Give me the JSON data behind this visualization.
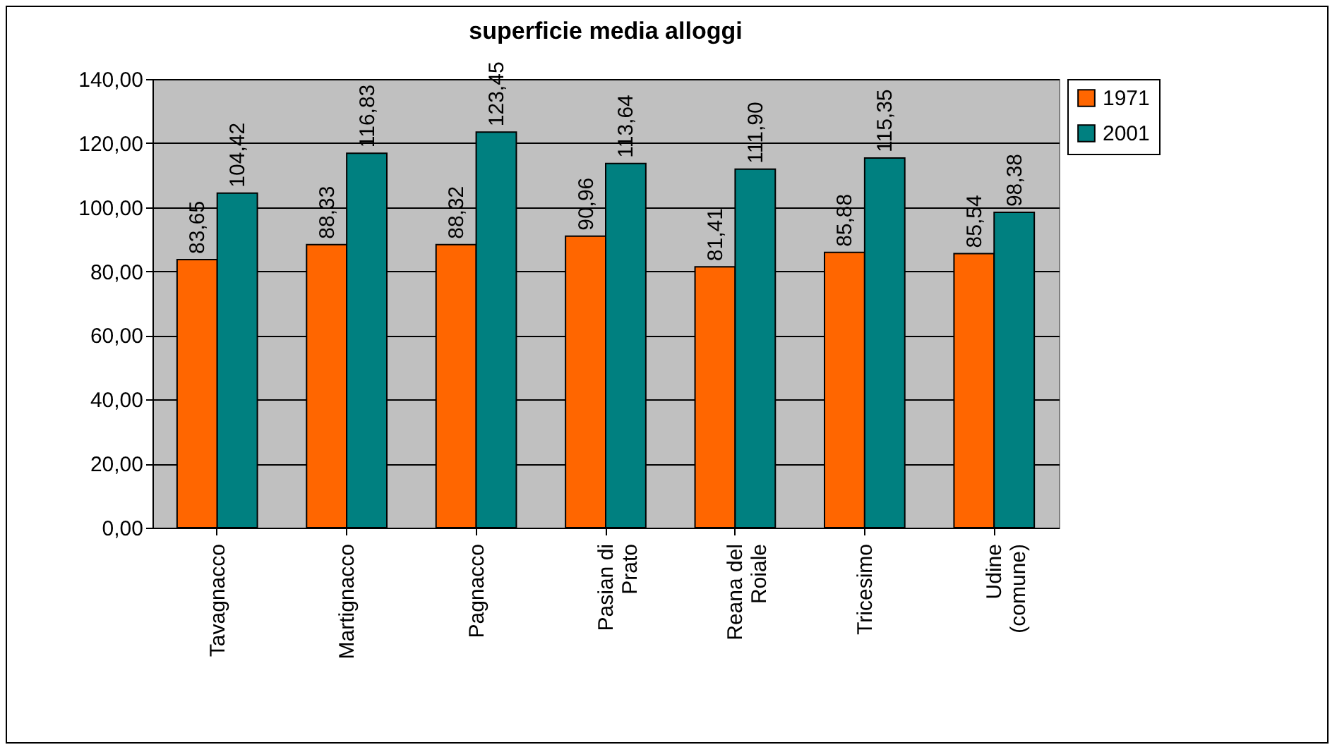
{
  "chart_data": {
    "type": "bar",
    "title": "superficie media alloggi",
    "categories": [
      "Tavagnacco",
      "Martignacco",
      "Pagnacco",
      "Pasian di Prato",
      "Reana del Roiale",
      "Tricesimo",
      "Udine (comune)"
    ],
    "series": [
      {
        "name": "1971",
        "color": "#ff6600",
        "values": [
          83.65,
          88.33,
          88.32,
          90.96,
          81.41,
          85.88,
          85.54
        ],
        "value_labels": [
          "83,65",
          "88,33",
          "88,32",
          "90,96",
          "81,41",
          "85,88",
          "85,54"
        ]
      },
      {
        "name": "2001",
        "color": "#008080",
        "values": [
          104.42,
          116.83,
          123.45,
          113.64,
          111.9,
          115.35,
          98.38
        ],
        "value_labels": [
          "104,42",
          "116,83",
          "123,45",
          "113,64",
          "111,90",
          "115,35",
          "98,38"
        ]
      }
    ],
    "ylim": [
      0,
      140
    ],
    "yticks": [
      {
        "value": 0,
        "label": "0,00"
      },
      {
        "value": 20,
        "label": "20,00"
      },
      {
        "value": 40,
        "label": "40,00"
      },
      {
        "value": 60,
        "label": "60,00"
      },
      {
        "value": 80,
        "label": "80,00"
      },
      {
        "value": 100,
        "label": "100,00"
      },
      {
        "value": 120,
        "label": "120,00"
      },
      {
        "value": 140,
        "label": "140,00"
      }
    ],
    "grid": "y",
    "legend": "right"
  }
}
